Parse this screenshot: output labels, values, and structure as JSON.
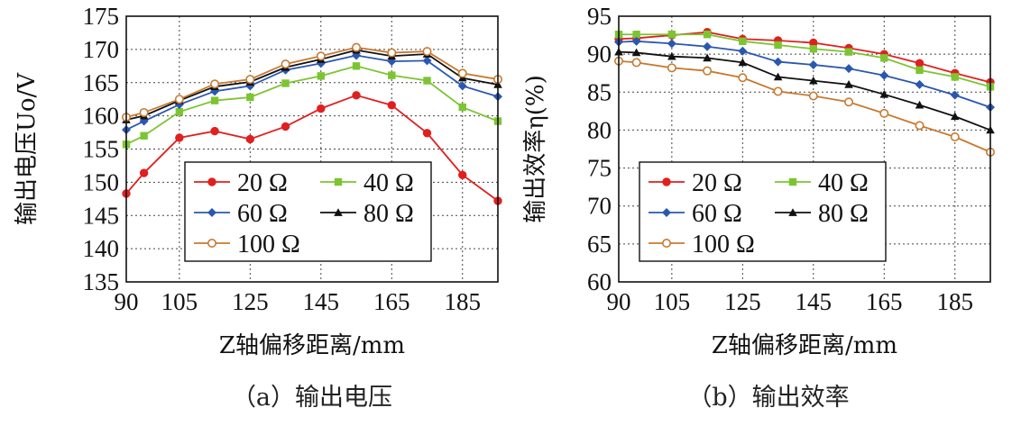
{
  "chart_data": [
    {
      "type": "line",
      "caption": "（a）输出电压",
      "xlabel": "Z轴偏移距离/mm",
      "ylabel": "输出电压Uo/V",
      "x": [
        90,
        95,
        105,
        115,
        125,
        135,
        145,
        155,
        165,
        175,
        185,
        195
      ],
      "xticks": [
        90,
        105,
        125,
        145,
        165,
        185
      ],
      "yticks": [
        135,
        140,
        145,
        150,
        155,
        160,
        165,
        170,
        175
      ],
      "xlim": [
        90,
        195
      ],
      "ylim": [
        135,
        175
      ],
      "grid": true,
      "legend_position": "lower-center",
      "series": [
        {
          "name": "20 Ω",
          "color": "#e02020",
          "marker": "circle-filled",
          "values": [
            148.3,
            151.4,
            156.7,
            157.7,
            156.5,
            158.4,
            161.1,
            163.1,
            161.6,
            157.4,
            151.1,
            147.2
          ]
        },
        {
          "name": "40 Ω",
          "color": "#7cc531",
          "marker": "square",
          "values": [
            155.7,
            157.0,
            160.6,
            162.3,
            162.8,
            164.9,
            166.0,
            167.5,
            166.1,
            165.3,
            161.3,
            159.2
          ]
        },
        {
          "name": "60 Ω",
          "color": "#2a58b0",
          "marker": "diamond",
          "values": [
            157.9,
            159.2,
            161.7,
            163.7,
            164.5,
            166.9,
            167.9,
            169.1,
            168.2,
            168.3,
            164.5,
            162.9
          ]
        },
        {
          "name": "80 Ω",
          "color": "#111111",
          "marker": "triangle",
          "values": [
            159.4,
            160.0,
            162.3,
            164.4,
            165.1,
            167.3,
            168.5,
            169.9,
            169.0,
            169.3,
            165.7,
            164.7
          ]
        },
        {
          "name": "100 Ω",
          "color": "#c87a30",
          "marker": "circle-open",
          "values": [
            159.8,
            160.5,
            162.5,
            164.8,
            165.5,
            167.8,
            169.0,
            170.3,
            169.5,
            169.7,
            166.4,
            165.5
          ]
        }
      ]
    },
    {
      "type": "line",
      "caption": "（b）输出效率",
      "xlabel": "Z轴偏移距离/mm",
      "ylabel": "输出效率η(%)",
      "x": [
        90,
        95,
        105,
        115,
        125,
        135,
        145,
        155,
        165,
        175,
        185,
        195
      ],
      "xticks": [
        90,
        105,
        125,
        145,
        165,
        185
      ],
      "yticks": [
        60,
        65,
        70,
        75,
        80,
        85,
        90,
        95
      ],
      "xlim": [
        90,
        195
      ],
      "ylim": [
        60,
        95
      ],
      "grid": true,
      "legend_position": "lower-left",
      "series": [
        {
          "name": "20 Ω",
          "color": "#e02020",
          "marker": "circle-filled",
          "values": [
            92.0,
            92.1,
            92.5,
            92.9,
            92.0,
            91.8,
            91.5,
            90.8,
            90.0,
            88.8,
            87.5,
            86.3
          ]
        },
        {
          "name": "40 Ω",
          "color": "#7cc531",
          "marker": "square",
          "values": [
            92.6,
            92.6,
            92.6,
            92.6,
            91.7,
            91.2,
            90.7,
            90.3,
            89.5,
            87.9,
            87.0,
            85.7
          ]
        },
        {
          "name": "60 Ω",
          "color": "#2a58b0",
          "marker": "diamond",
          "values": [
            91.6,
            91.7,
            91.4,
            91.0,
            90.4,
            89.0,
            88.6,
            88.1,
            87.2,
            86.0,
            84.6,
            83.0
          ]
        },
        {
          "name": "80 Ω",
          "color": "#111111",
          "marker": "triangle",
          "values": [
            90.3,
            90.2,
            89.7,
            89.5,
            88.9,
            87.0,
            86.5,
            86.0,
            84.7,
            83.3,
            81.8,
            80.0
          ]
        },
        {
          "name": "100 Ω",
          "color": "#c87a30",
          "marker": "circle-open",
          "values": [
            89.1,
            88.9,
            88.2,
            87.8,
            86.9,
            85.1,
            84.5,
            83.7,
            82.2,
            80.6,
            79.1,
            77.1
          ]
        }
      ]
    }
  ]
}
